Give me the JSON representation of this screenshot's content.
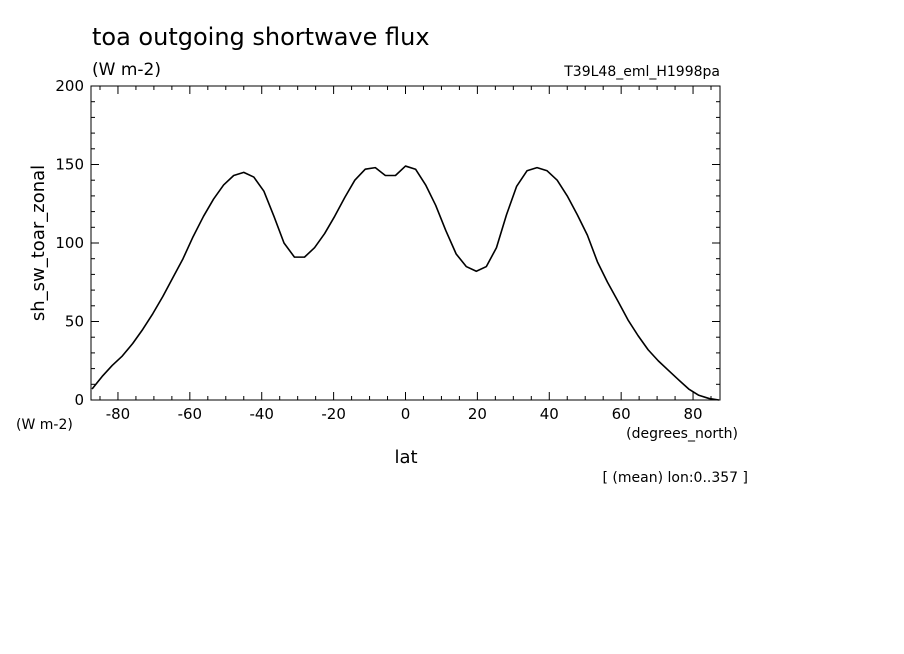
{
  "chart_data": {
    "type": "line",
    "title": "toa outgoing shortwave flux",
    "title_units": "(W m-2)",
    "experiment": "T39L48_eml_H1998pa",
    "xlabel": "lat",
    "xlabel_units": "(degrees_north)",
    "ylabel": "sh_sw_toar_zonal",
    "ylabel_units": "(W m-2)",
    "footnote": "[ (mean) lon:0..357 ]",
    "xlim": [
      -87.5,
      87.5
    ],
    "ylim": [
      0,
      200
    ],
    "x_ticks": [
      -80,
      -60,
      -40,
      -20,
      0,
      20,
      40,
      60,
      80
    ],
    "x_tick_labels": [
      "-80",
      "-60",
      "-40",
      "-20",
      "0",
      "20",
      "40",
      "60",
      "80"
    ],
    "y_ticks": [
      0,
      50,
      100,
      150,
      200
    ],
    "y_tick_labels": [
      "0",
      "50",
      "100",
      "150",
      "200"
    ],
    "grid": false,
    "line_color": "#000000",
    "series": [
      {
        "x": [
          -87.2,
          -84.4,
          -81.6,
          -78.8,
          -75.9,
          -73.1,
          -70.3,
          -67.5,
          -64.7,
          -61.9,
          -59.1,
          -56.2,
          -53.4,
          -50.6,
          -47.8,
          -45.0,
          -42.2,
          -39.4,
          -36.6,
          -33.8,
          -30.9,
          -28.1,
          -25.3,
          -22.5,
          -19.7,
          -16.9,
          -14.1,
          -11.2,
          -8.4,
          -5.6,
          -2.8,
          0.0,
          2.8,
          5.6,
          8.4,
          11.2,
          14.1,
          16.9,
          19.7,
          22.5,
          25.3,
          28.1,
          30.9,
          33.8,
          36.6,
          39.4,
          42.2,
          45.0,
          47.8,
          50.6,
          53.4,
          56.2,
          59.1,
          61.9,
          64.7,
          67.5,
          70.3,
          73.1,
          75.9,
          78.8,
          81.6,
          84.4,
          87.2
        ],
        "values": [
          7,
          15,
          22,
          28,
          36,
          45,
          55,
          66,
          78,
          90,
          104,
          117,
          128,
          137,
          143,
          145,
          142,
          133,
          117,
          100,
          91,
          91,
          97,
          106,
          117,
          129,
          140,
          147,
          148,
          143,
          143,
          149,
          147,
          137,
          124,
          108,
          93,
          85,
          82,
          85,
          97,
          118,
          136,
          146,
          148,
          146,
          140,
          130,
          118,
          105,
          88,
          75,
          63,
          51,
          41,
          32,
          25,
          19,
          13,
          7,
          3,
          1,
          0
        ]
      }
    ]
  }
}
